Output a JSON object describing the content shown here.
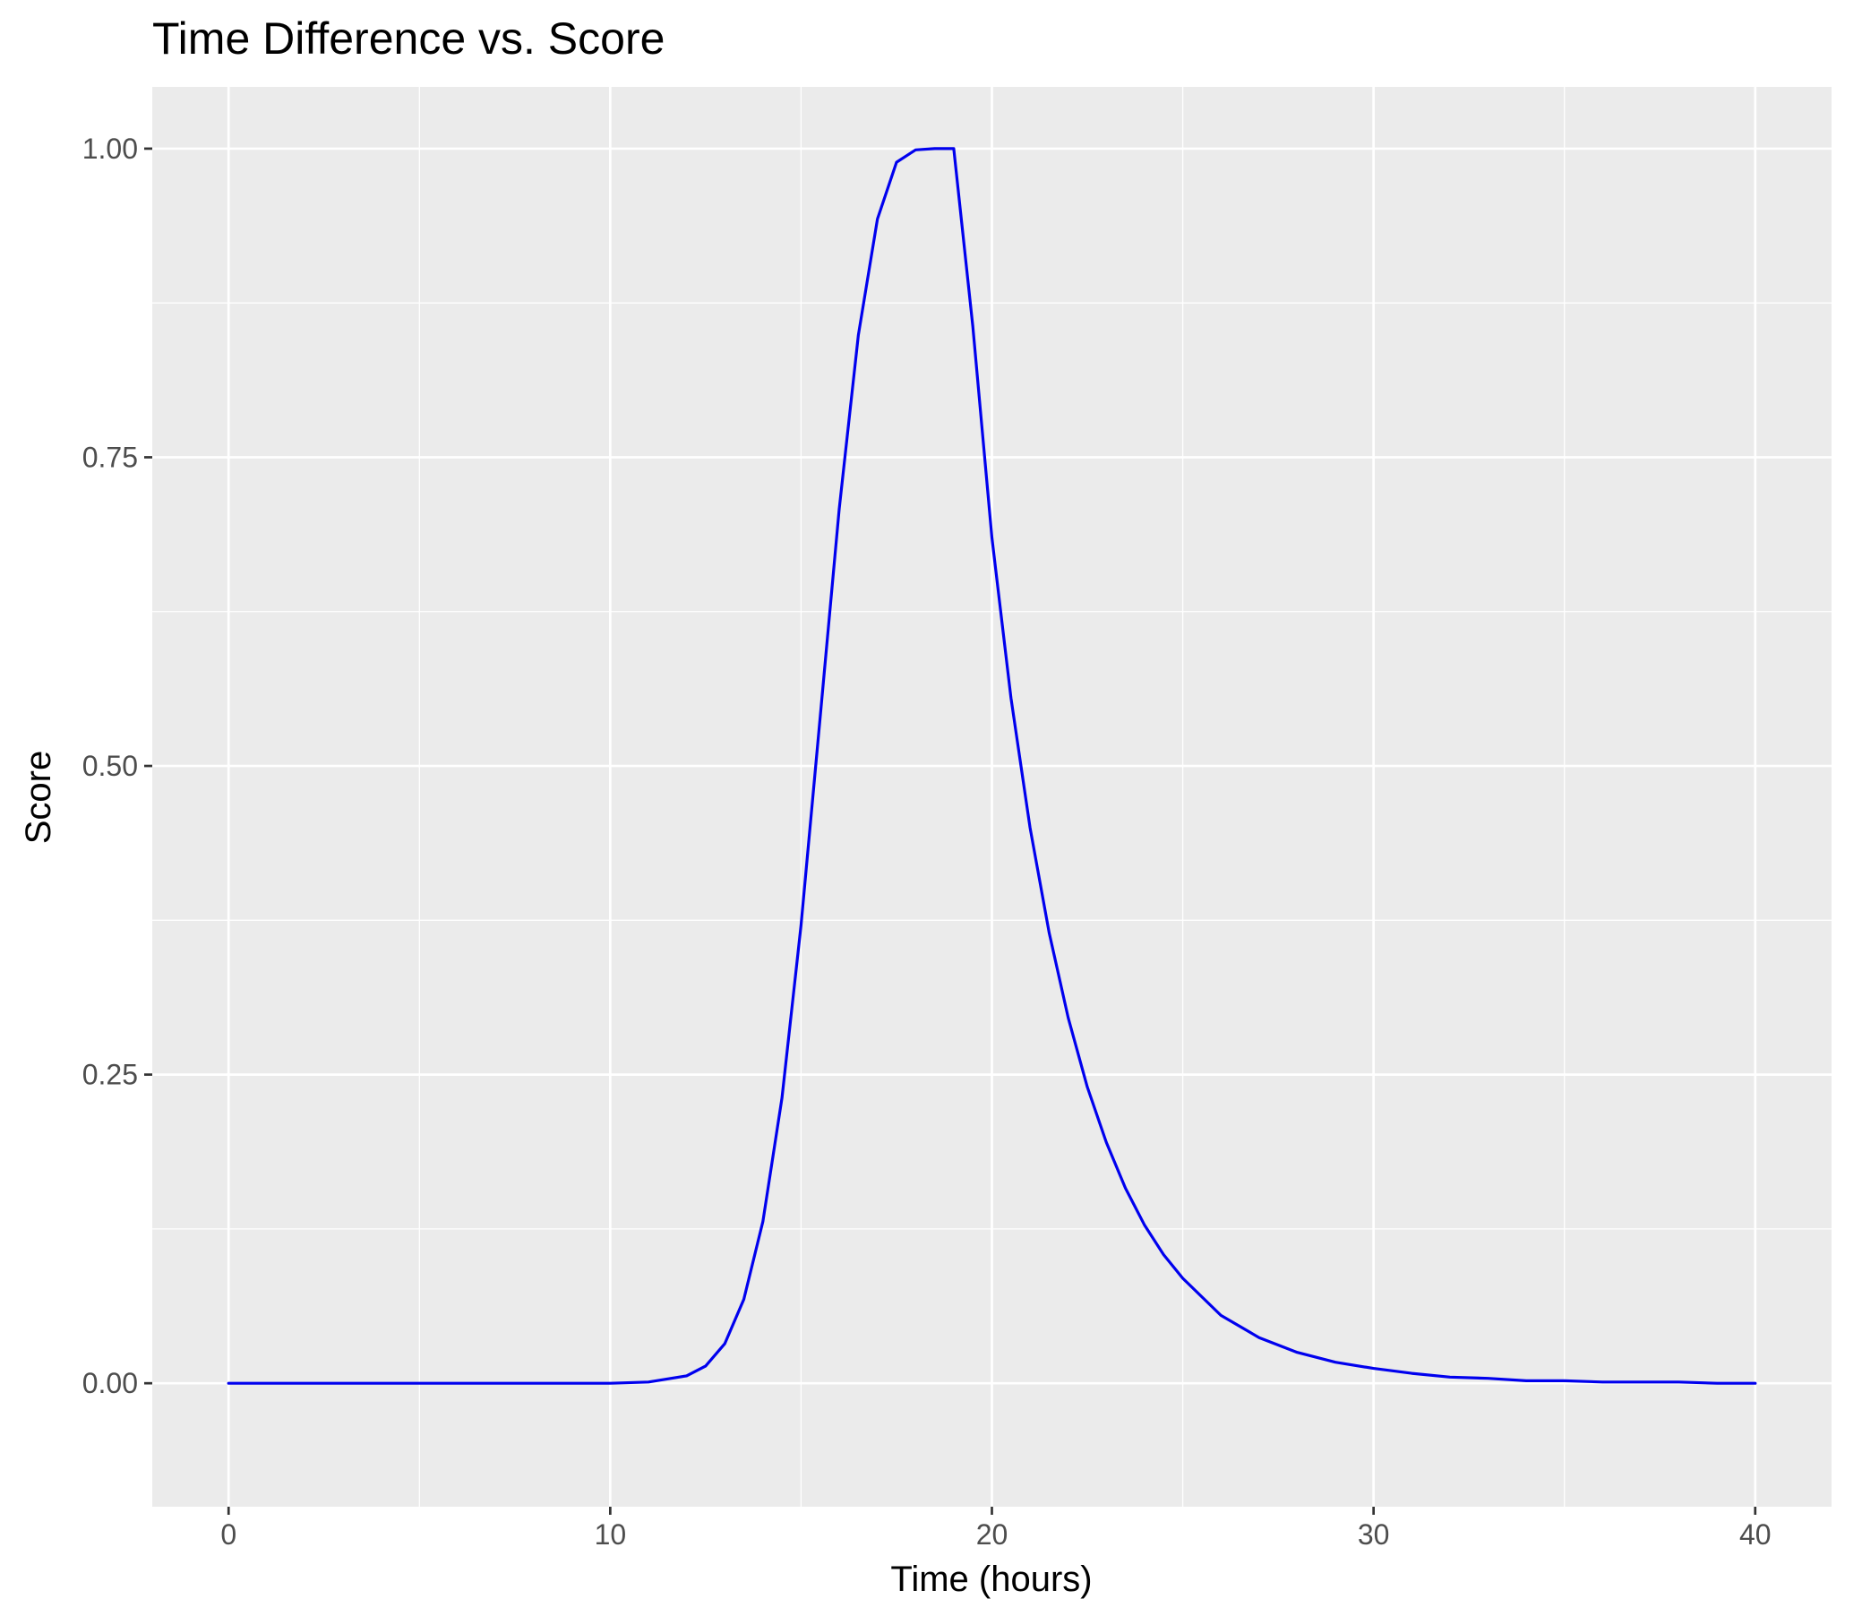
{
  "chart_data": {
    "type": "line",
    "title": "Time Difference vs. Score",
    "xlabel": "Time (hours)",
    "ylabel": "Score",
    "xlim": [
      -2,
      42
    ],
    "ylim": [
      -0.1,
      1.05
    ],
    "x_ticks": [
      0,
      10,
      20,
      30,
      40
    ],
    "x_tick_labels": [
      "0",
      "10",
      "20",
      "30",
      "40"
    ],
    "x_minor_ticks": [
      5,
      15,
      25,
      35
    ],
    "y_ticks": [
      0,
      0.25,
      0.5,
      0.75,
      1.0
    ],
    "y_tick_labels": [
      "0.00",
      "0.25",
      "0.50",
      "0.75",
      "1.00"
    ],
    "y_minor_ticks": [
      0.125,
      0.375,
      0.625,
      0.875
    ],
    "grid": true,
    "legend": "none",
    "series": [
      {
        "color": "#0000ee",
        "x": [
          0,
          2,
          4,
          6,
          8,
          10,
          11,
          12,
          12.5,
          13,
          13.5,
          14,
          14.5,
          15,
          15.5,
          16,
          16.5,
          17,
          17.5,
          18,
          18.5,
          19,
          19.5,
          20,
          20.5,
          21,
          21.5,
          22,
          22.5,
          23,
          23.5,
          24,
          24.5,
          25,
          26,
          27,
          28,
          29,
          30,
          31,
          32,
          33,
          34,
          35,
          36,
          37,
          38,
          39,
          40
        ],
        "y": [
          0,
          0,
          0,
          0,
          0,
          0,
          0.001,
          0.006,
          0.014,
          0.032,
          0.068,
          0.131,
          0.231,
          0.371,
          0.539,
          0.708,
          0.849,
          0.943,
          0.989,
          0.999,
          1.0,
          1.0,
          0.856,
          0.685,
          0.555,
          0.45,
          0.365,
          0.296,
          0.24,
          0.195,
          0.158,
          0.128,
          0.104,
          0.085,
          0.055,
          0.037,
          0.025,
          0.017,
          0.012,
          0.008,
          0.005,
          0.004,
          0.002,
          0.002,
          0.001,
          0.001,
          0.001,
          0,
          0
        ]
      }
    ]
  }
}
